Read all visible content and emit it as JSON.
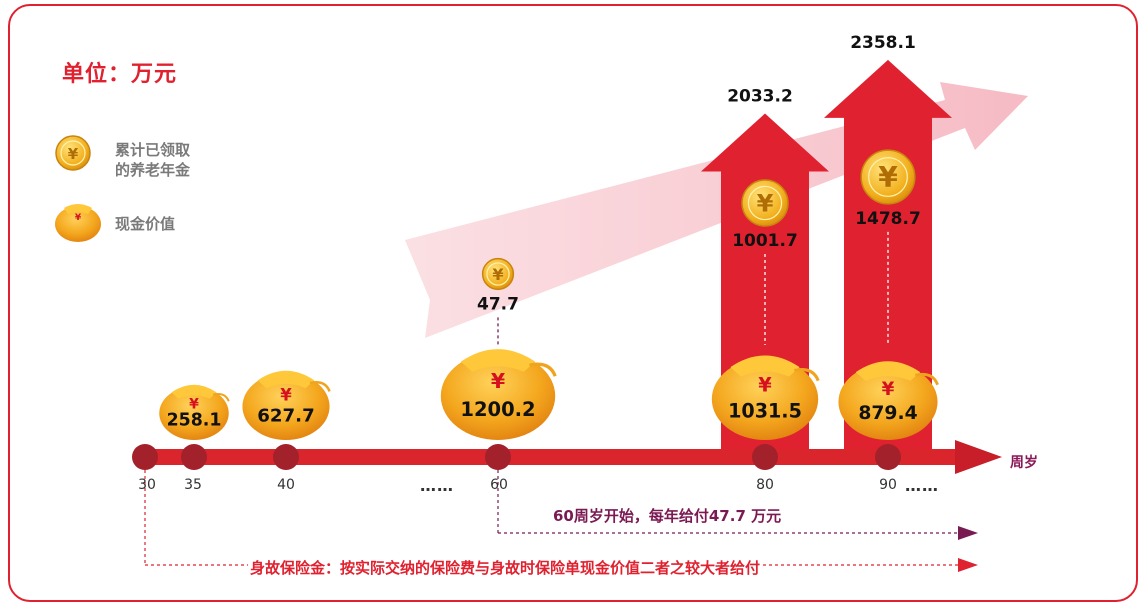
{
  "unit_label": "单位：万元",
  "legend": {
    "pension": [
      "累计已领取",
      "的养老年金"
    ],
    "cash": "现金价值"
  },
  "axis": {
    "name": "周岁",
    "ticks": [
      "30",
      "35",
      "40",
      "60",
      "80",
      "90"
    ],
    "ellipsis": "……"
  },
  "notes": {
    "annuity": "60周岁开始，每年给付47.7  万元",
    "death": "身故保险金：按实际交纳的保险费与身故时保险单现金价值二者之较大者给付"
  },
  "colors": {
    "brand_red": "#e0212f",
    "timeline_red": "#d9252b",
    "coin_gold": "#f2b01e",
    "bag_orange": "#f0a41e",
    "note_purple": "#7a1a52"
  },
  "icons": {
    "coin": "yuan-coin-icon",
    "bag": "money-bag-icon"
  },
  "chart_data": {
    "type": "bar",
    "categories": [
      "35",
      "40",
      "60",
      "80",
      "90"
    ],
    "series": [
      {
        "name": "现金价值",
        "values": [
          258.1,
          627.7,
          1200.2,
          1031.5,
          879.4
        ]
      },
      {
        "name": "累计已领取的养老年金",
        "values": [
          null,
          null,
          47.7,
          1001.7,
          1478.7
        ]
      }
    ],
    "totals": [
      null,
      null,
      null,
      2033.2,
      2358.1
    ],
    "total_labels": [
      "2033.2",
      "2358.1"
    ],
    "cash_labels": [
      "258.1",
      "627.7",
      "1200.2",
      "1031.5",
      "879.4"
    ],
    "pension_labels": [
      "47.7",
      "1001.7",
      "1478.7"
    ],
    "xlabel": "周岁",
    "ylabel": ""
  }
}
